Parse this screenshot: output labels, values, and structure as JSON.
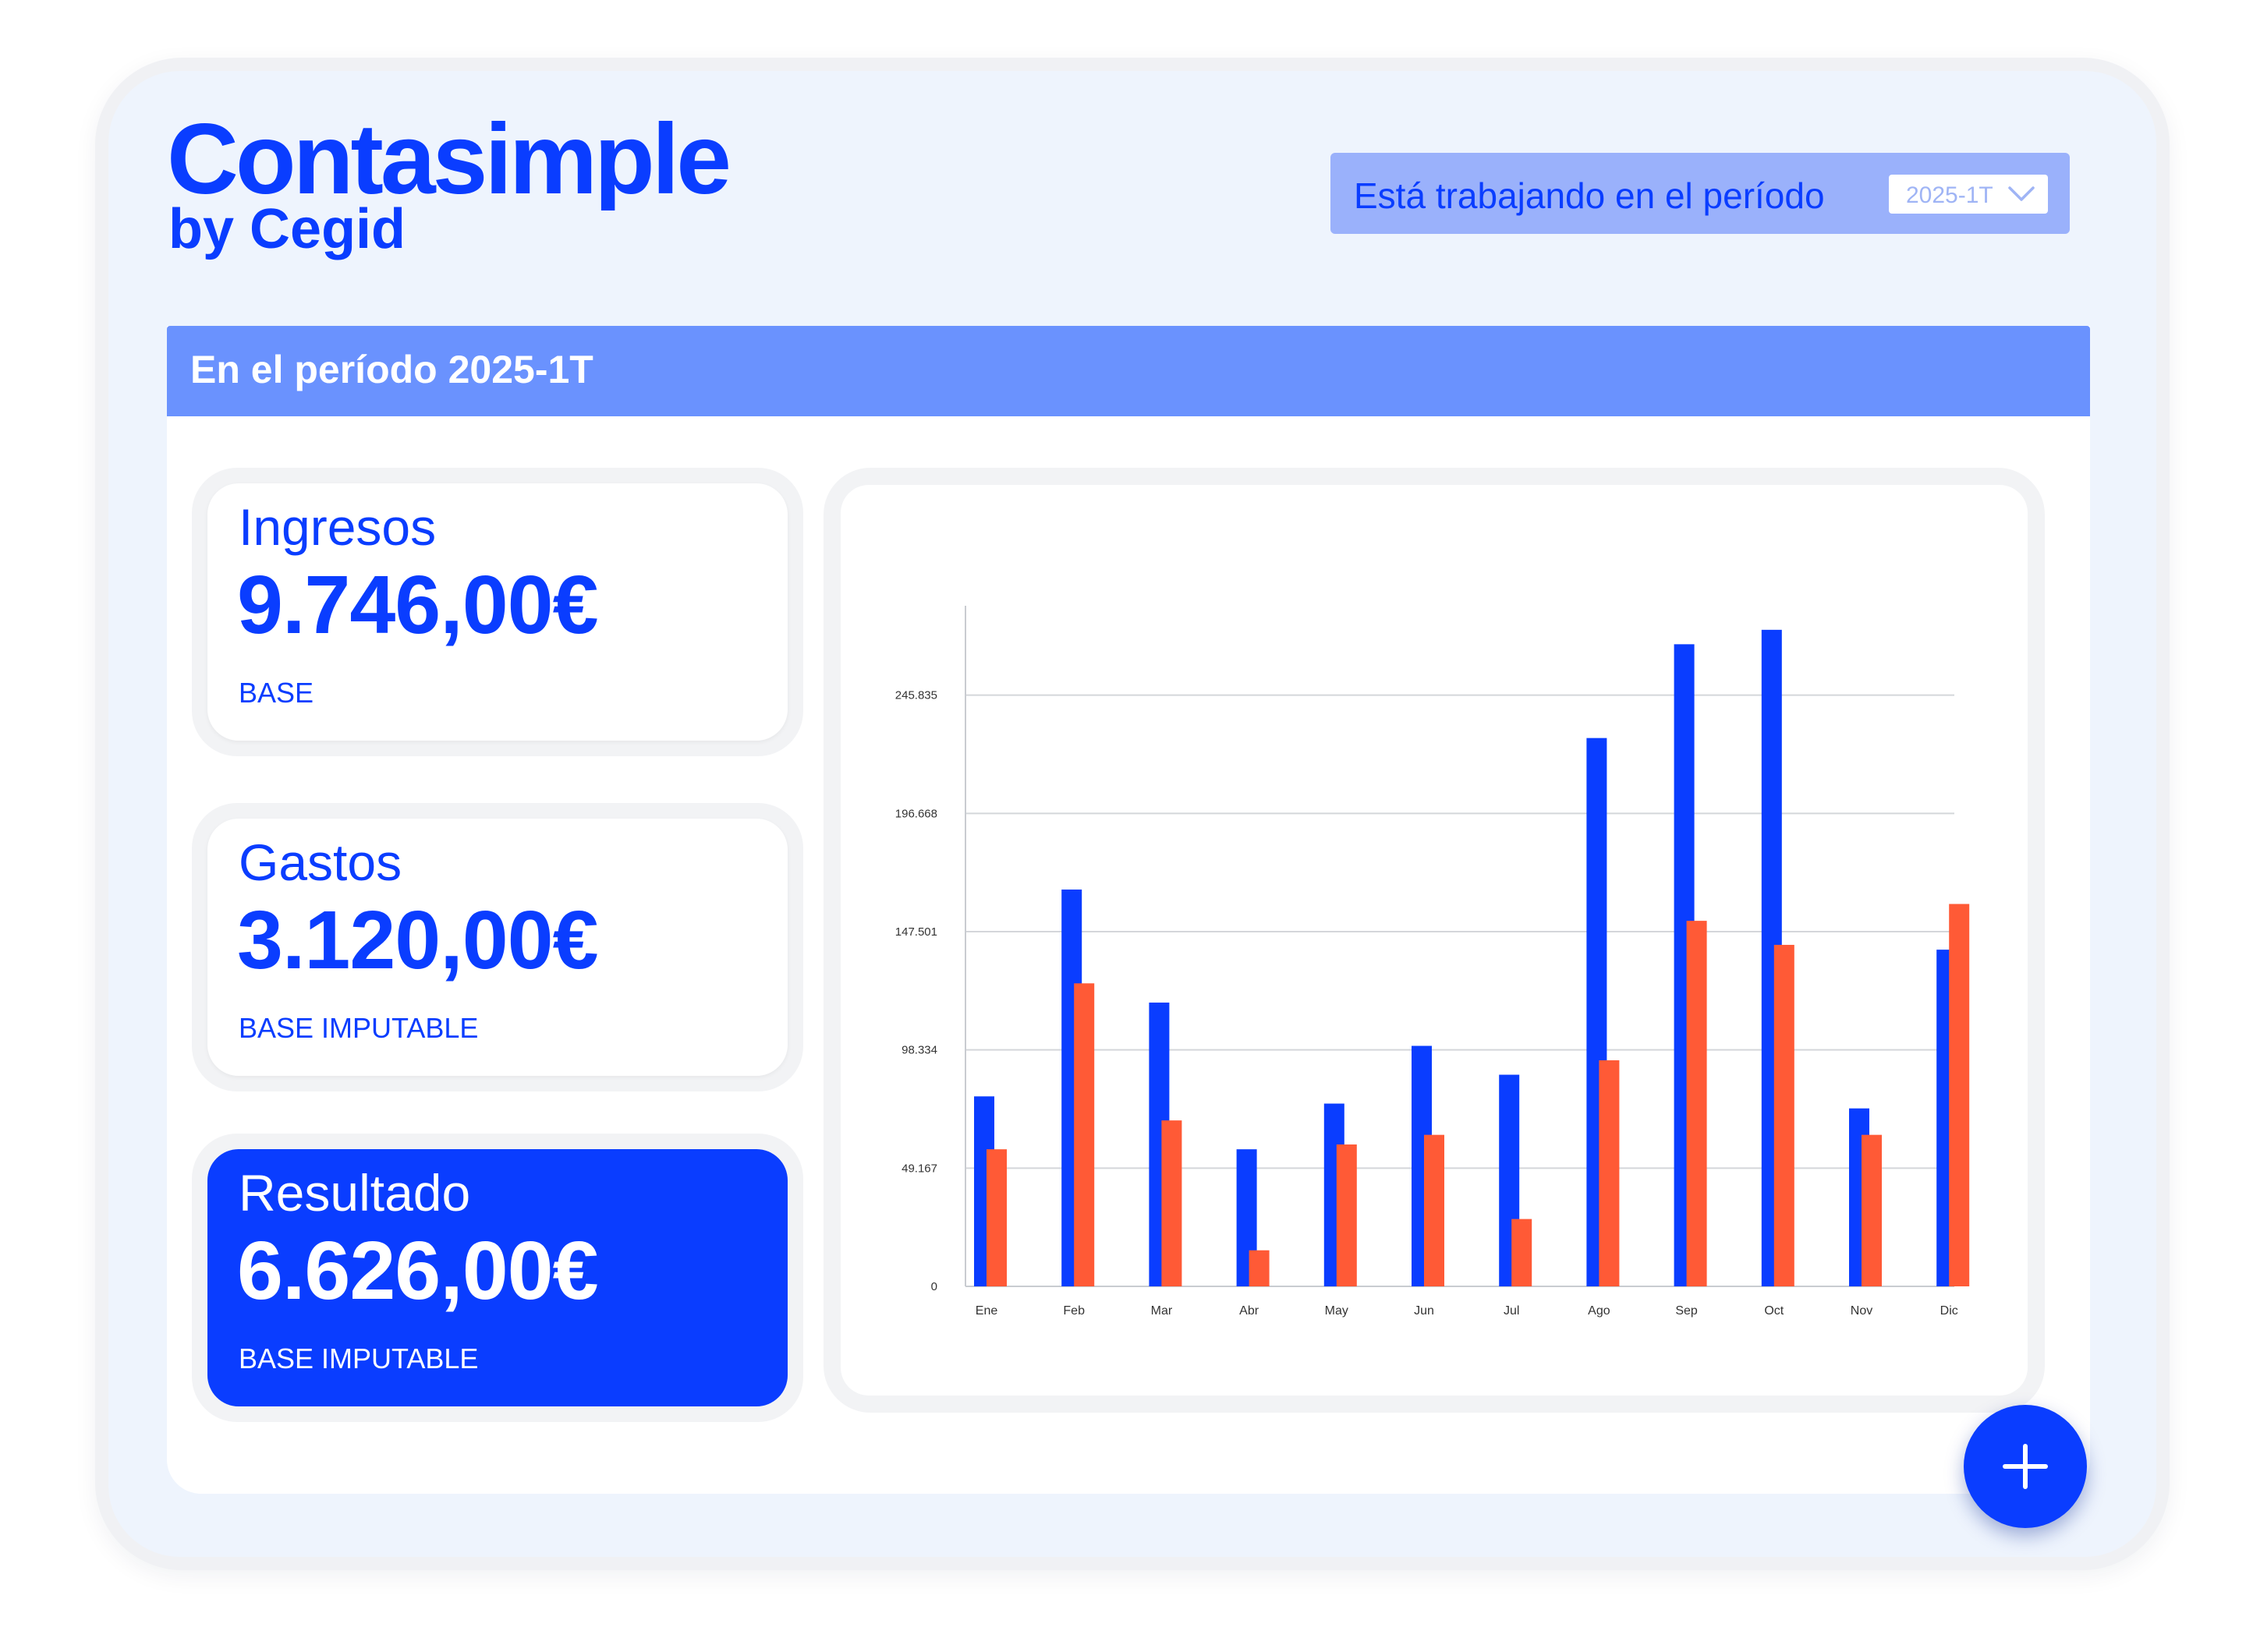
{
  "logo": {
    "name": "Contasimple",
    "sub": "by Cegid"
  },
  "period_selector": {
    "label": "Está trabajando en el período",
    "value": "2025-1T"
  },
  "banner": {
    "title": "En el período 2025-1T"
  },
  "cards": [
    {
      "title": "Ingresos",
      "amount": "9.746,00€",
      "subtitle": "BASE"
    },
    {
      "title": "Gastos",
      "amount": "3.120,00€",
      "subtitle": "BASE IMPUTABLE"
    },
    {
      "title": "Resultado",
      "amount": "6.626,00€",
      "subtitle": "BASE IMPUTABLE"
    }
  ],
  "colors": {
    "primary": "#0a3dff",
    "accent": "#ff5a36",
    "banner": "#6a92fe"
  },
  "chart_data": {
    "type": "bar",
    "categories": [
      "Ene",
      "Feb",
      "Mar",
      "Abr",
      "May",
      "Jun",
      "Jul",
      "Ago",
      "Sep",
      "Oct",
      "Nov",
      "Dic"
    ],
    "yticks": [
      0,
      49167,
      98334,
      147501,
      196668,
      245835
    ],
    "ytick_labels": [
      "0",
      "49.167",
      "98.334",
      "147.501",
      "196.668",
      "245.835"
    ],
    "ylim": [
      0,
      283000
    ],
    "grid": true,
    "series": [
      {
        "color": "#0a3dff",
        "values": [
          79000,
          165000,
          118000,
          57000,
          76000,
          100000,
          88000,
          228000,
          267000,
          273000,
          74000,
          140000
        ]
      },
      {
        "color": "#ff5a36",
        "values": [
          57000,
          126000,
          69000,
          15000,
          59000,
          63000,
          28000,
          94000,
          152000,
          142000,
          63000,
          159000
        ]
      }
    ]
  },
  "fab": {
    "icon": "plus-icon"
  }
}
